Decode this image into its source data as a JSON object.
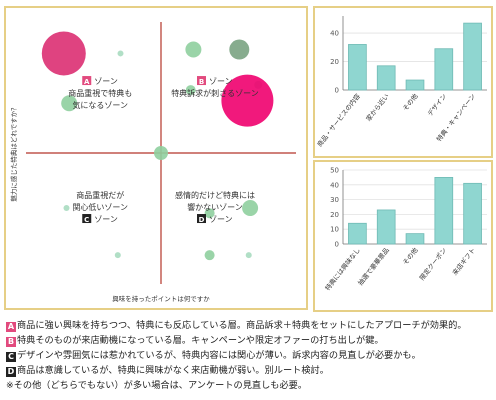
{
  "chart_data": [
    {
      "type": "scatter",
      "xlabel": "興味を持ったポイントは何ですか",
      "ylabel": "魅力に感じた特典はどれですか？",
      "quadrants": [
        {
          "badge": "A",
          "badge_color": "#e24a7e",
          "line1": "ゾーン",
          "line2": "商品重視で特典も",
          "line3": "気になるゾーン",
          "label_position": "top-left"
        },
        {
          "badge": "B",
          "badge_color": "#e24a7e",
          "line1": "ゾーン",
          "line2": "特典訴求が刺さるゾーン",
          "line3": "",
          "label_position": "top-right"
        },
        {
          "badge": "C",
          "badge_color": "#222222",
          "line1": "商品重視だが",
          "line2": "関心低いゾーン",
          "line3": "ゾーン",
          "label_position": "bottom-left"
        },
        {
          "badge": "D",
          "badge_color": "#222222",
          "line1": "感情的だけど特典には",
          "line2": "響かないゾーン",
          "line3": "ゾーン",
          "label_position": "bottom-right"
        }
      ],
      "points": [
        {
          "x": -0.72,
          "y": 0.76,
          "size": 22,
          "color": "#dc2f72"
        },
        {
          "x": -0.3,
          "y": 0.76,
          "size": 3,
          "color": "#a8dcc0"
        },
        {
          "x": -0.68,
          "y": 0.38,
          "size": 8,
          "color": "#8fcf9f"
        },
        {
          "x": 0.24,
          "y": 0.79,
          "size": 8,
          "color": "#8fcf9f"
        },
        {
          "x": 0.58,
          "y": 0.79,
          "size": 10,
          "color": "#7aa382"
        },
        {
          "x": 0.22,
          "y": 0.48,
          "size": 5,
          "color": "#8fcf9f"
        },
        {
          "x": 0.72,
          "y": 0.52,
          "size": 4,
          "color": "#a8dcc0"
        },
        {
          "x": 0.64,
          "y": 0.4,
          "size": 26,
          "color": "#f0006e"
        },
        {
          "x": 0.0,
          "y": 0.0,
          "size": 7,
          "color": "#8fcf9f"
        },
        {
          "x": -0.7,
          "y": -0.42,
          "size": 3,
          "color": "#a8dcc0"
        },
        {
          "x": 0.66,
          "y": -0.42,
          "size": 8,
          "color": "#8fcf9f"
        },
        {
          "x": 0.36,
          "y": -0.46,
          "size": 5,
          "color": "#8fcf9f"
        },
        {
          "x": -0.32,
          "y": -0.78,
          "size": 3,
          "color": "#a8dcc0"
        },
        {
          "x": 0.36,
          "y": -0.78,
          "size": 5,
          "color": "#8fcf9f"
        },
        {
          "x": 0.65,
          "y": -0.78,
          "size": 3,
          "color": "#a8dcc0"
        }
      ],
      "axis_color": "#b5352a",
      "xlim": [
        -1,
        1
      ],
      "ylim": [
        -1,
        1
      ]
    },
    {
      "type": "bar",
      "categories": [
        "商品・サービスの内容",
        "家から近い",
        "その他",
        "デザイン",
        "特典・キャンペーン"
      ],
      "values": [
        32,
        17,
        7,
        29,
        47
      ],
      "yticks": [
        0,
        20,
        40
      ],
      "ylim": [
        0,
        52
      ],
      "grid": true,
      "bar_color": "#8fd6d0",
      "bar_stroke": "#6fbab4"
    },
    {
      "type": "bar",
      "categories": [
        "特典には興味なし",
        "抽選で豪華景品",
        "その他",
        "限定クーポン",
        "来店ギフト"
      ],
      "values": [
        14,
        23,
        7,
        45,
        41
      ],
      "yticks": [
        0,
        10,
        20,
        30,
        40,
        50
      ],
      "ylim": [
        0,
        50
      ],
      "grid": true,
      "bar_color": "#8fd6d0",
      "bar_stroke": "#6fbab4"
    }
  ],
  "legend": [
    {
      "badge": "A",
      "text": "商品に強い興味を持ちつつ、特典にも反応している層。商品訴求＋特典をセットにしたアプローチが効果的。"
    },
    {
      "badge": "B",
      "text": "特典そのものが来店動機になっている層。キャンペーンや限定オファーの打ち出しが鍵。"
    },
    {
      "badge": "C",
      "text": "デザインや雰囲気には惹かれているが、特典内容には関心が薄い。訴求内容の見直しが必要かも。"
    },
    {
      "badge": "D",
      "text": "商品は意識しているが、特典に興味がなく来店動機が弱い。別ルート検討。"
    },
    {
      "badge": "",
      "text": "※その他（どちらでもない）が多い場合は、アンケートの見直しも必要。"
    }
  ]
}
